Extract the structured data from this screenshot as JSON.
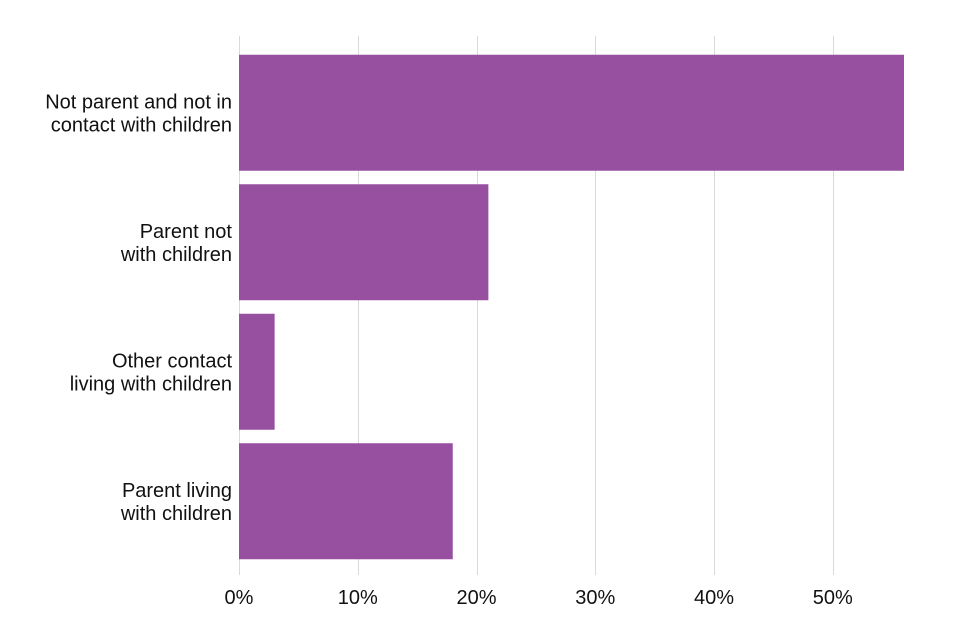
{
  "chart_data": {
    "type": "bar",
    "orientation": "horizontal",
    "categories": [
      [
        "Not parent and not in",
        "contact with children"
      ],
      [
        "Parent not",
        "with children"
      ],
      [
        "Other contact",
        "living with children"
      ],
      [
        "Parent living",
        "with children"
      ]
    ],
    "values": [
      56,
      21,
      3,
      18
    ],
    "unit": "%",
    "xlim": [
      0,
      56
    ],
    "xticks": [
      0,
      10,
      20,
      30,
      40,
      50
    ],
    "xtick_labels": [
      "0%",
      "10%",
      "20%",
      "30%",
      "40%",
      "50%"
    ],
    "grid": "vertical",
    "legend": "none",
    "colors": {
      "bar": "#974fa0",
      "grid": "#d9d9d9",
      "text": "#111111"
    }
  }
}
